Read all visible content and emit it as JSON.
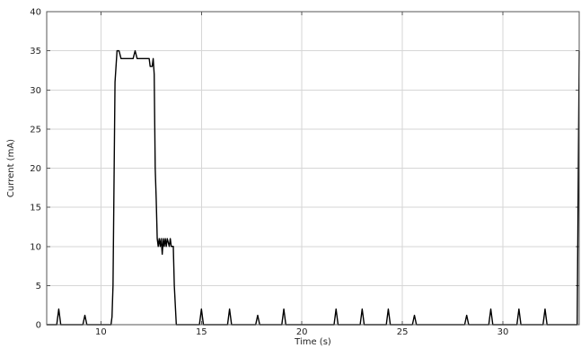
{
  "chart_data": {
    "type": "line",
    "title": "",
    "xlabel": "Time (s)",
    "ylabel": "Current (mA)",
    "xlim": [
      7.3,
      33.8
    ],
    "ylim": [
      0,
      40
    ],
    "xticks": [
      10,
      15,
      20,
      25,
      30
    ],
    "yticks": [
      0,
      5,
      10,
      15,
      20,
      25,
      30,
      35,
      40
    ],
    "grid": true,
    "legend": "none",
    "line_color": "#000000",
    "series": [
      {
        "x": [
          7.3,
          7.8,
          7.9,
          8.0,
          8.1,
          9.1,
          9.2,
          9.3,
          9.4,
          10.5,
          10.55,
          10.6,
          10.7,
          10.8,
          10.9,
          11.0,
          11.1,
          11.2,
          11.6,
          11.7,
          11.8,
          12.4,
          12.45,
          12.55,
          12.6,
          12.65,
          12.7,
          12.75,
          12.8,
          12.85,
          12.9,
          12.95,
          13.0,
          13.05,
          13.1,
          13.15,
          13.2,
          13.25,
          13.3,
          13.35,
          13.4,
          13.45,
          13.5,
          13.55,
          13.6,
          13.65,
          13.75,
          13.85,
          14.9,
          15.0,
          15.1,
          15.2,
          16.3,
          16.4,
          16.5,
          17.7,
          17.8,
          17.9,
          18.0,
          19.0,
          19.1,
          19.2,
          21.6,
          21.7,
          21.8,
          22.9,
          23.0,
          23.1,
          24.2,
          24.3,
          24.4,
          25.5,
          25.6,
          25.7,
          28.1,
          28.2,
          28.3,
          29.3,
          29.4,
          29.5,
          30.7,
          30.8,
          30.9,
          32.0,
          32.1,
          32.2,
          33.7,
          33.8
        ],
        "y": [
          0,
          0,
          2,
          0,
          0,
          0,
          1.2,
          0,
          0,
          0,
          1,
          5,
          31,
          35,
          35,
          34,
          34,
          34,
          34,
          35,
          34,
          34,
          33,
          33,
          34,
          32,
          20,
          16,
          11,
          10,
          11,
          10,
          11,
          9,
          11,
          10,
          11,
          10,
          11,
          10.5,
          10,
          11,
          10,
          10,
          10,
          5,
          0,
          0,
          0,
          2,
          0,
          0,
          0,
          2,
          0,
          0,
          1.2,
          0,
          0,
          0,
          2,
          0,
          0,
          2,
          0,
          0,
          2,
          0,
          0,
          2,
          0,
          0,
          1.2,
          0,
          0,
          1.2,
          0,
          0,
          2,
          0,
          0,
          2,
          0,
          0,
          2,
          0,
          0,
          35
        ]
      }
    ]
  }
}
